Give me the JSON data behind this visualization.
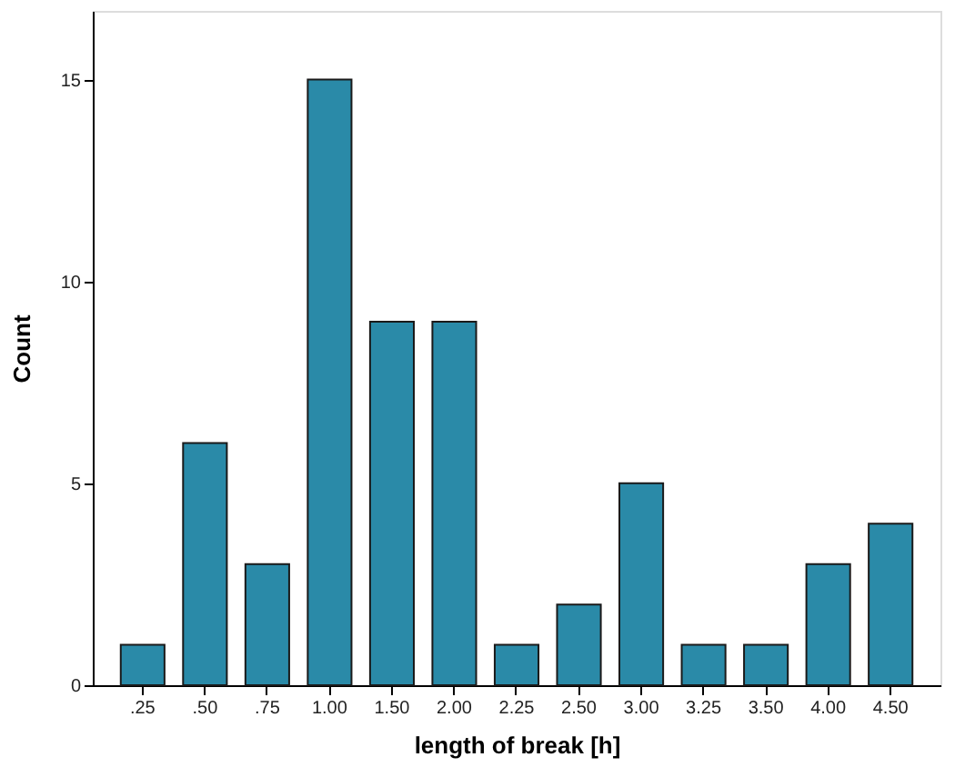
{
  "chart_data": {
    "type": "bar",
    "xlabel": "length of break [h]",
    "ylabel": "Count",
    "categories": [
      ".25",
      ".50",
      ".75",
      "1.00",
      "1.50",
      "2.00",
      "2.25",
      "2.50",
      "3.00",
      "3.25",
      "3.50",
      "4.00",
      "4.50"
    ],
    "values": [
      1,
      6,
      3,
      15,
      9,
      9,
      1,
      2,
      5,
      1,
      1,
      3,
      4
    ],
    "color": "#2a8aa8",
    "ylim": [
      0,
      16.7
    ],
    "yticks": [
      0,
      5,
      10,
      15
    ],
    "grid": false
  }
}
